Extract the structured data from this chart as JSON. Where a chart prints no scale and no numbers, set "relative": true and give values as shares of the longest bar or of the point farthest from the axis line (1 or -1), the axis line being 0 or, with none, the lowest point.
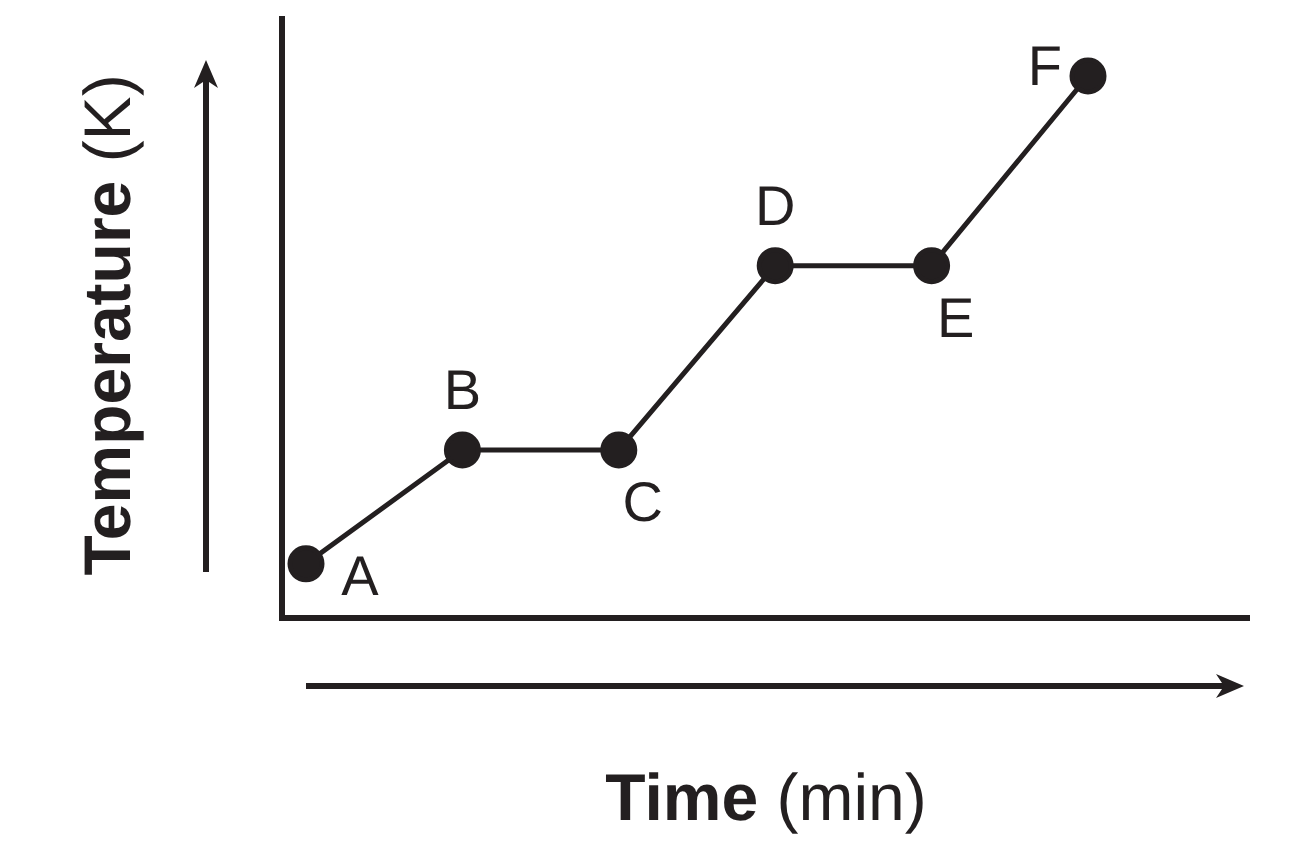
{
  "chart_data": {
    "type": "line",
    "relative": true,
    "xlabel": "Time (min)",
    "ylabel": "Temperature (K)",
    "categories": [
      null,
      null,
      null,
      null,
      null,
      null
    ],
    "series": [
      {
        "color": "#231f20",
        "values": [
          0.1,
          0.31,
          0.31,
          0.65,
          0.65,
          1
        ]
      }
    ],
    "annotations": [
      "A",
      "B",
      "C",
      "D",
      "E",
      "F"
    ],
    "marker": "circle",
    "line_style": "solid",
    "grid": false,
    "legend": false,
    "tick_labels": false
  }
}
